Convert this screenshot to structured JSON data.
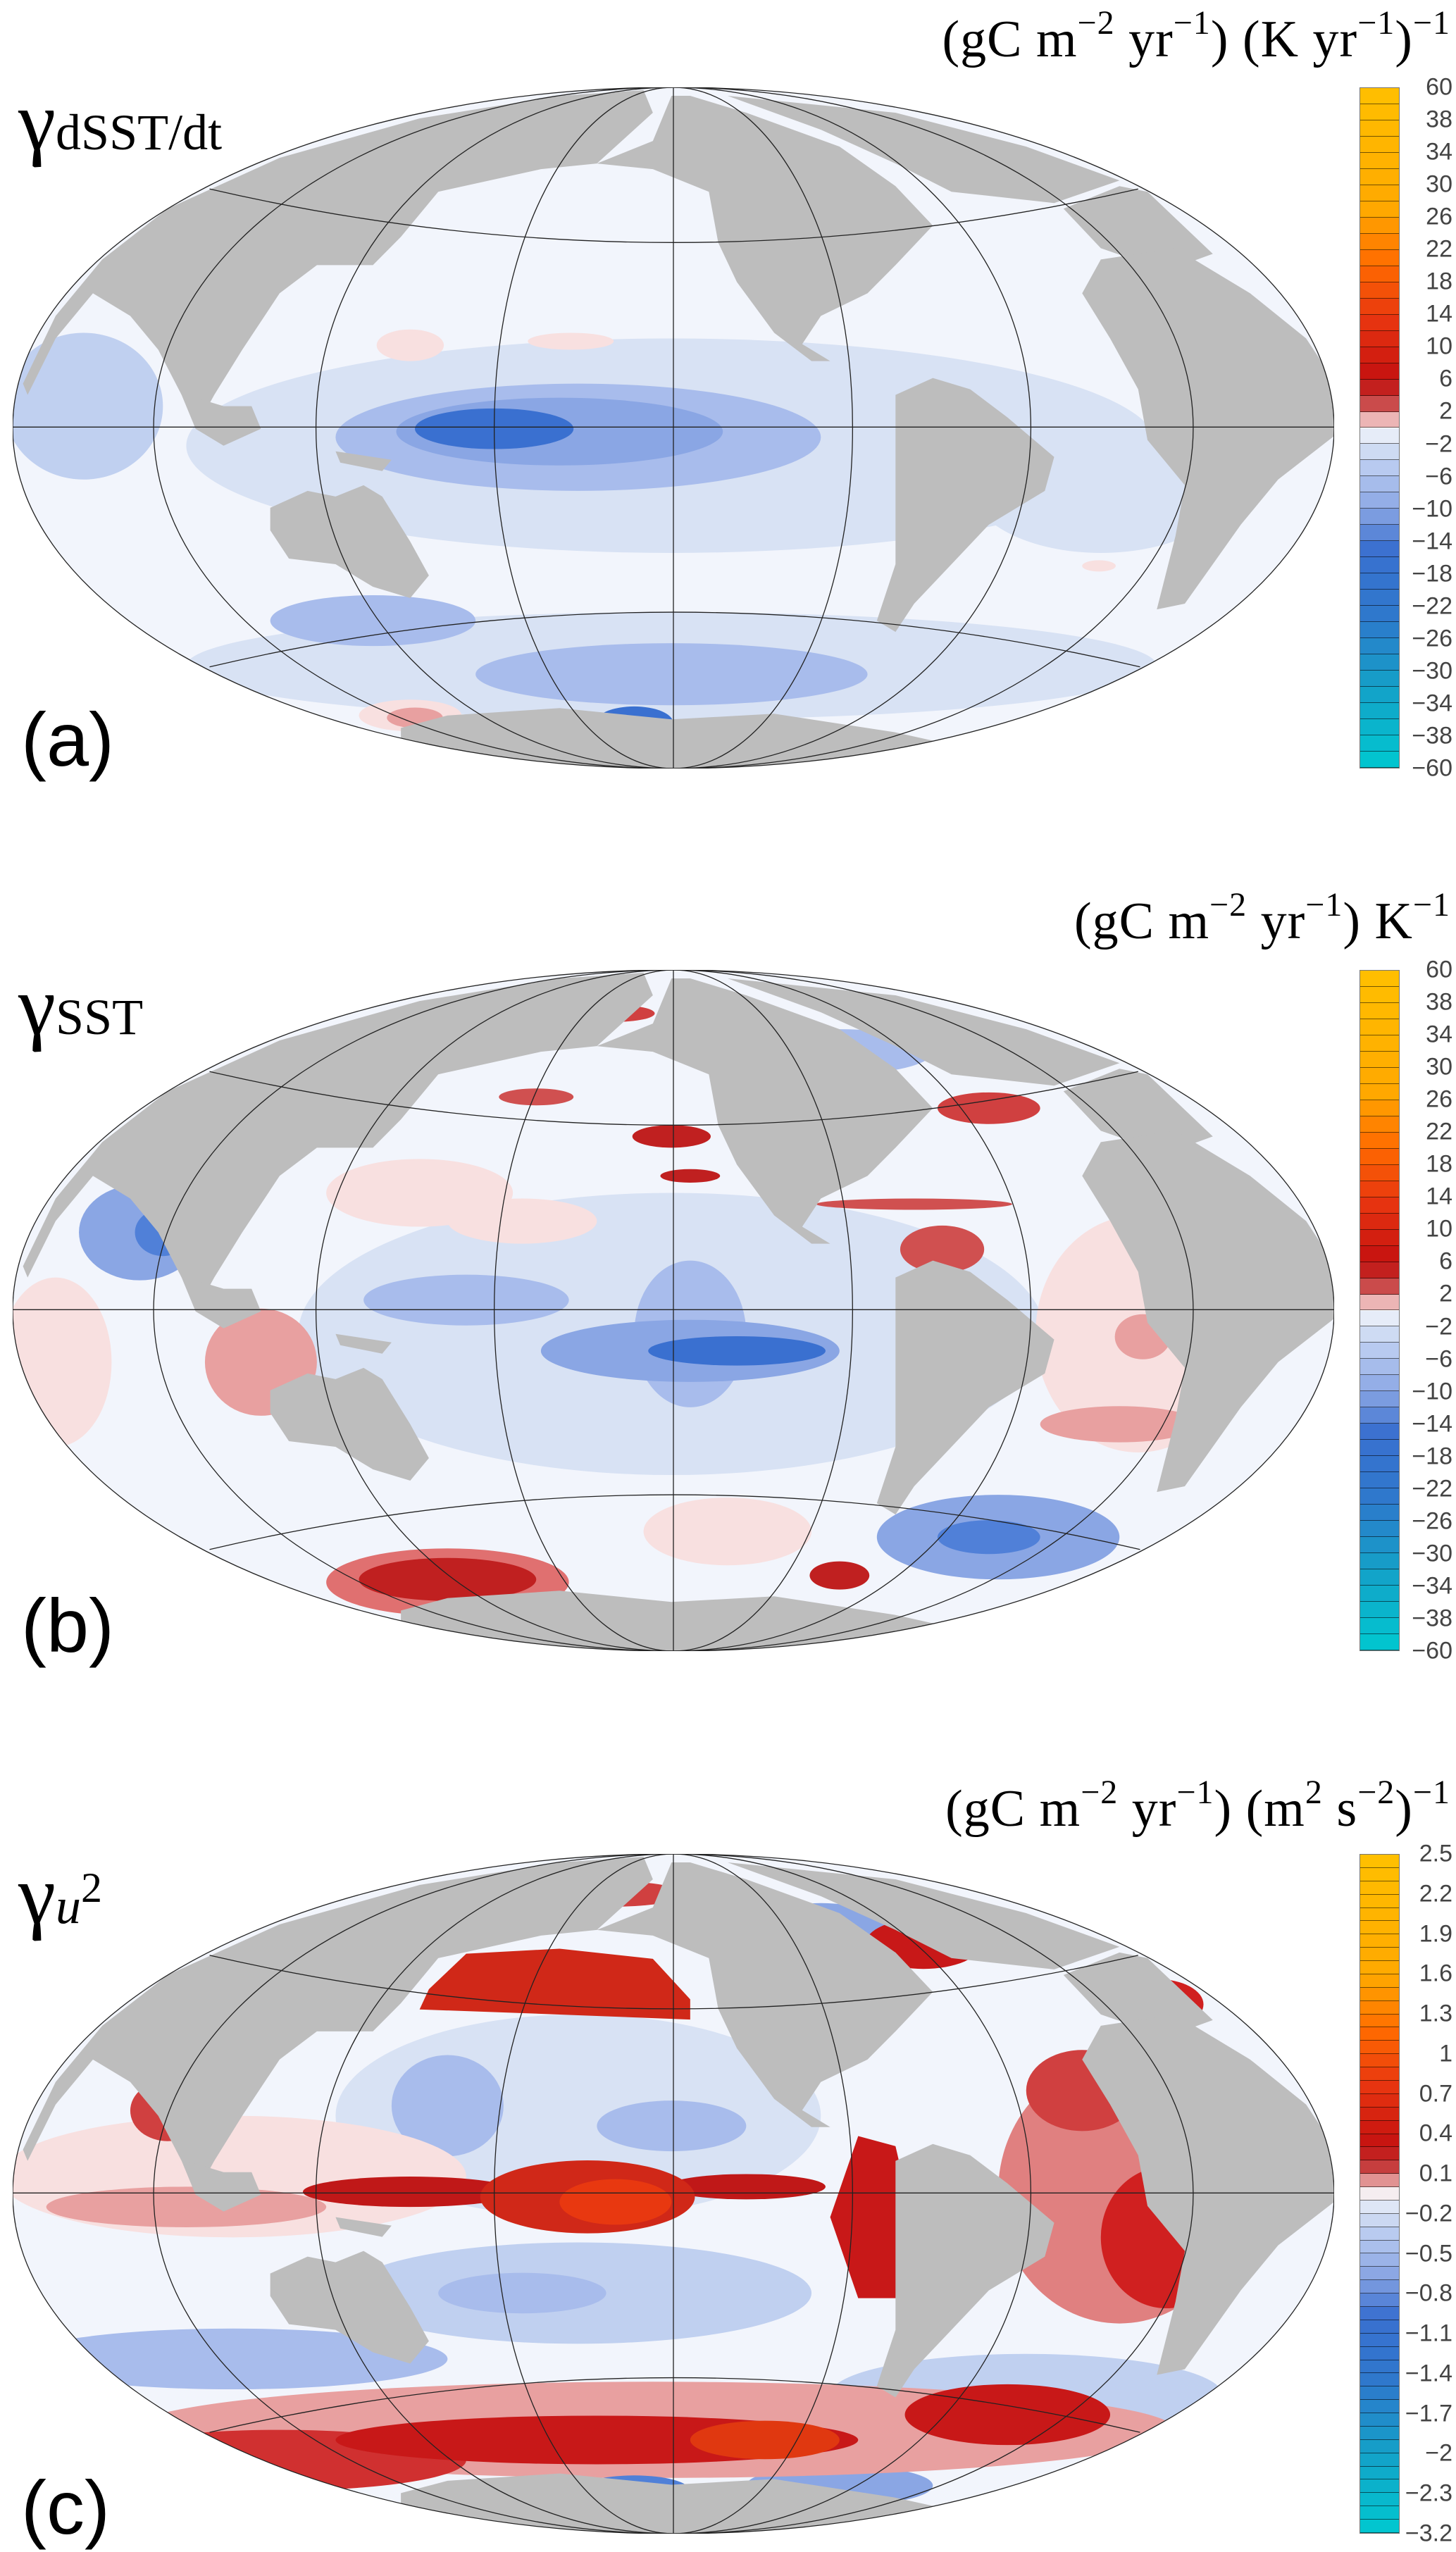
{
  "panels": [
    {
      "letter": "(a)",
      "symbol": "γ",
      "subscript": "dSST/dt",
      "units": [
        "(gC m",
        "−2",
        " yr",
        "−1",
        ") (K yr",
        "−1",
        ")",
        "−1"
      ],
      "colorbar_ticks": [
        "60",
        "38",
        "34",
        "30",
        "26",
        "22",
        "18",
        "14",
        "10",
        "6",
        "2",
        "−2",
        "−6",
        "−10",
        "−14",
        "−18",
        "−22",
        "−26",
        "−30",
        "−34",
        "−38",
        "−60"
      ],
      "bands_per_tick": 2
    },
    {
      "letter": "(b)",
      "symbol": "γ",
      "subscript": "SST",
      "units": [
        "(gC m",
        "−2",
        " yr",
        "−1",
        ") K",
        "−1"
      ],
      "colorbar_ticks": [
        "60",
        "38",
        "34",
        "30",
        "26",
        "22",
        "18",
        "14",
        "10",
        "6",
        "2",
        "−2",
        "−6",
        "−10",
        "−14",
        "−18",
        "−22",
        "−26",
        "−30",
        "−34",
        "−38",
        "−60"
      ],
      "bands_per_tick": 2
    },
    {
      "letter": "(c)",
      "symbol": "γ",
      "subscript": "u",
      "subscript_power": "2",
      "units": [
        "(gC m",
        "−2",
        " yr",
        "−1",
        ") (m",
        "2",
        " s",
        "−2",
        ")",
        "−1"
      ],
      "colorbar_ticks": [
        "2.5",
        "2.2",
        "1.9",
        "1.6",
        "1.3",
        "1",
        "0.7",
        "0.4",
        "0.1",
        "−0.2",
        "−0.5",
        "−0.8",
        "−1.1",
        "−1.4",
        "−1.7",
        "−2",
        "−2.3",
        "−3.2"
      ],
      "bands_per_tick": 3
    }
  ],
  "colors": {
    "land": "#bdbdbd",
    "ocean_zero": "#f2f5fc",
    "ramp": [
      [
        0.0,
        "#ffc000"
      ],
      [
        0.18,
        "#ffa800"
      ],
      [
        0.26,
        "#ff6a00"
      ],
      [
        0.34,
        "#e83510"
      ],
      [
        0.42,
        "#c81410"
      ],
      [
        0.455,
        "#c02828"
      ],
      [
        0.47,
        "#d06060"
      ],
      [
        0.485,
        "#e8a8a8"
      ],
      [
        0.499,
        "#f8e4e4"
      ],
      [
        0.501,
        "#f2f5fc"
      ],
      [
        0.525,
        "#d8e2f4"
      ],
      [
        0.56,
        "#b8caf0"
      ],
      [
        0.62,
        "#8aa6e4"
      ],
      [
        0.68,
        "#3a70d0"
      ],
      [
        0.78,
        "#2e78cc"
      ],
      [
        0.88,
        "#14a0c8"
      ],
      [
        1.0,
        "#00c8d0"
      ]
    ]
  }
}
